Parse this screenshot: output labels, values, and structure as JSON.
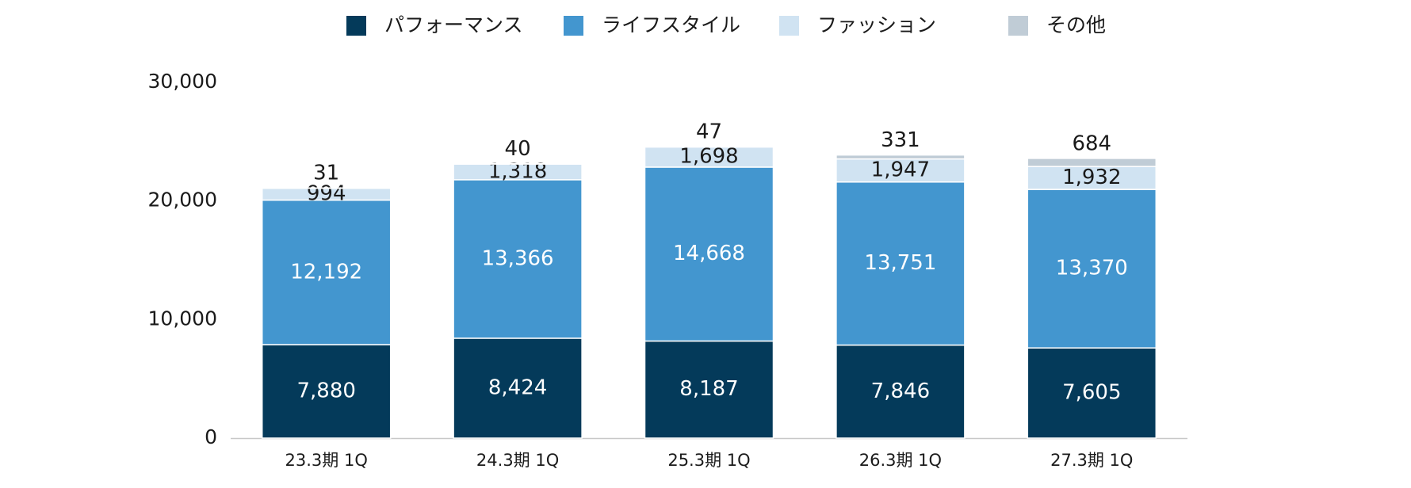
{
  "chart_data": {
    "type": "stacked_bar",
    "categories": [
      "23.3期 1Q",
      "24.3期 1Q",
      "25.3期 1Q",
      "26.3期 1Q",
      "27.3期 1Q"
    ],
    "series": [
      {
        "name": "パフォーマンス",
        "color": "#043a5a",
        "values": [
          7880,
          8424,
          8187,
          7846,
          7605
        ],
        "value_labels": [
          "7,880",
          "8,424",
          "8,187",
          "7,846",
          "7,605"
        ]
      },
      {
        "name": "ライフスタイル",
        "color": "#4396cf",
        "values": [
          12192,
          13366,
          14668,
          13751,
          13370
        ],
        "value_labels": [
          "12,192",
          "13,366",
          "14,668",
          "13,751",
          "13,370"
        ]
      },
      {
        "name": "ファッション",
        "color": "#d0e3f2",
        "values": [
          994,
          1318,
          1698,
          1947,
          1932
        ],
        "value_labels": [
          "994",
          "1,318",
          "1,698",
          "1,947",
          "1,932"
        ]
      },
      {
        "name": "その他",
        "color": "#c0ccd6",
        "values": [
          31,
          40,
          47,
          331,
          684
        ],
        "value_labels": [
          "31",
          "40",
          "47",
          "331",
          "684"
        ]
      }
    ],
    "ylim": [
      0,
      30000
    ],
    "yticks": [
      0,
      {
        "value": 10000,
        "label": "10,000"
      },
      {
        "value": 20000,
        "label": "20,000"
      },
      {
        "value": 30000,
        "label": "30,000"
      }
    ],
    "grid": false,
    "legend": "top"
  }
}
